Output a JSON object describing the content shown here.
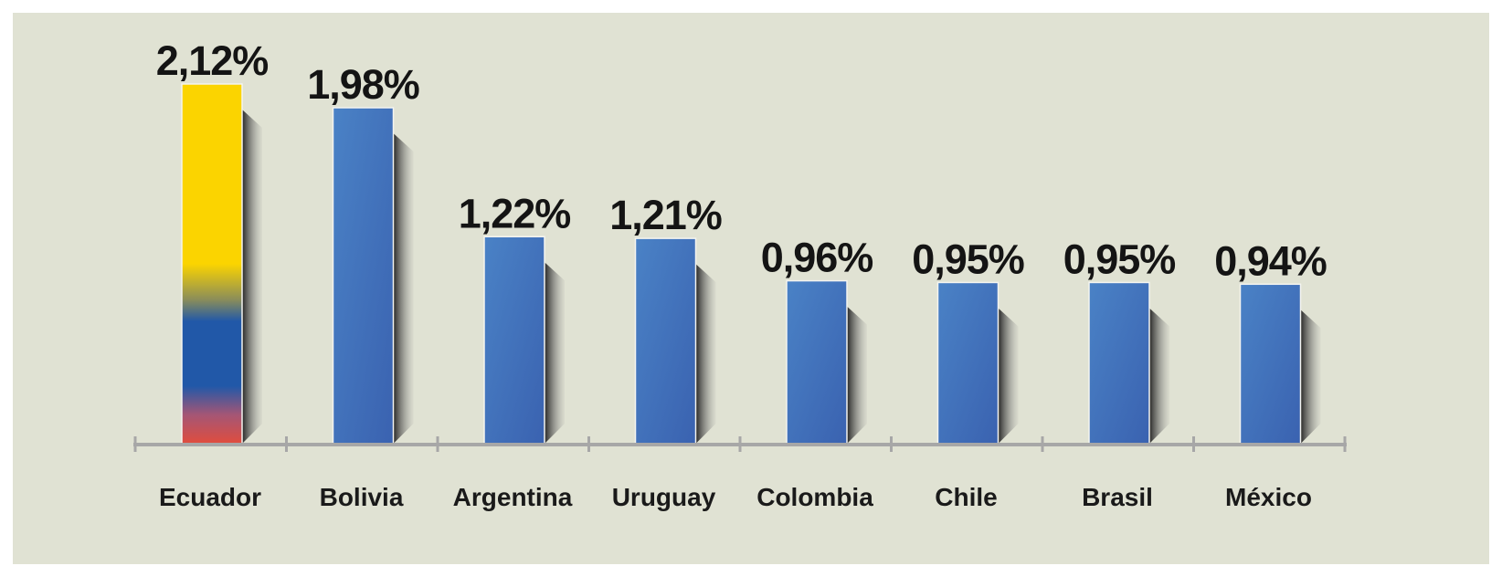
{
  "chart_data": {
    "type": "bar",
    "categories": [
      "Ecuador",
      "Bolivia",
      "Argentina",
      "Uruguay",
      "Colombia",
      "Chile",
      "Brasil",
      "México"
    ],
    "values": [
      2.12,
      1.98,
      1.22,
      1.21,
      0.96,
      0.95,
      0.95,
      0.94
    ],
    "value_labels": [
      "2,12%",
      "1,98%",
      "1,22%",
      "1,21%",
      "0,96%",
      "0,95%",
      "0,95%",
      "0,94%"
    ],
    "title": "",
    "xlabel": "",
    "ylabel": "",
    "ylim": [
      0,
      2.12
    ],
    "grid": false,
    "highlight_category": "Ecuador",
    "highlight_fill": "Ecuador flag colors (yellow, blue, red)",
    "colors": {
      "bar": "#3f70b9",
      "bar_light": "#4a82c6",
      "flag_yellow": "#fbd400",
      "flag_blue": "#2158a8",
      "flag_red": "#d9504a",
      "axis": "#a7a7a7",
      "background": "#e0e2d3"
    }
  }
}
